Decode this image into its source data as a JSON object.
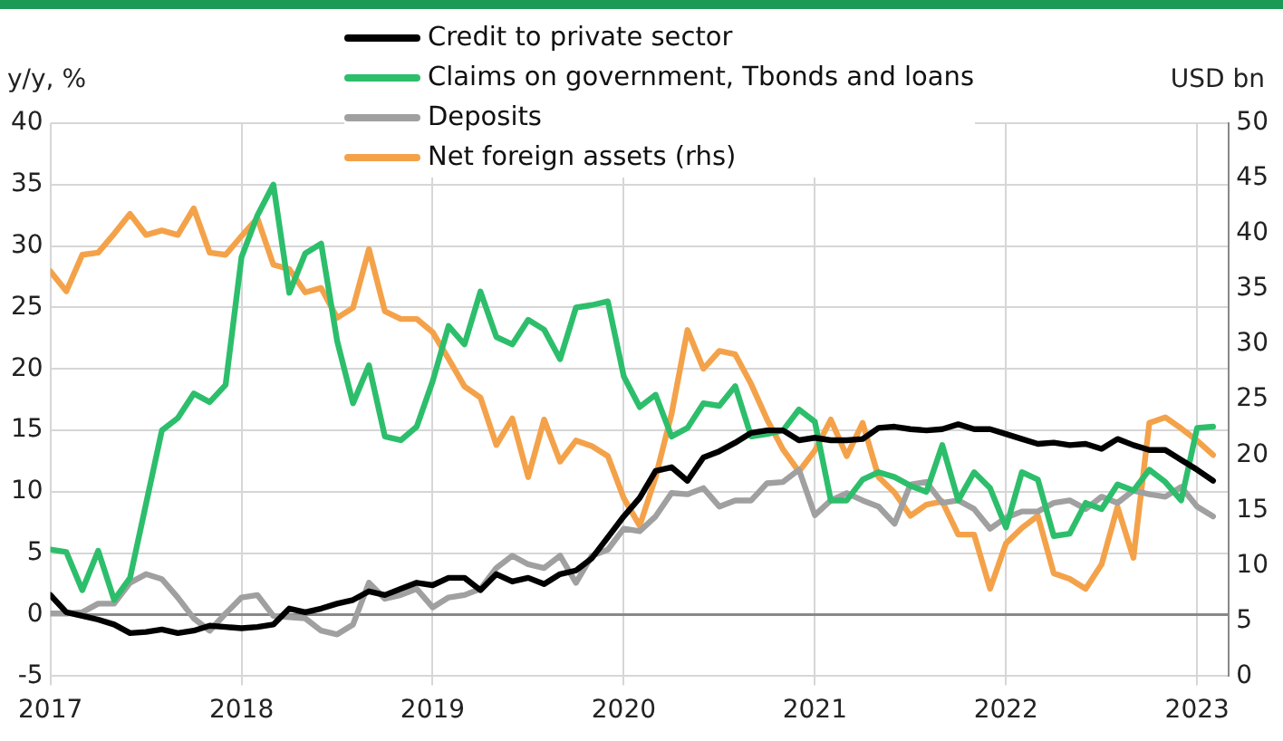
{
  "chart_data": {
    "type": "line",
    "ylabel": "y/y, %",
    "y2label": "USD bn",
    "x": [
      "2017-01",
      "2017-02",
      "2017-03",
      "2017-04",
      "2017-05",
      "2017-06",
      "2017-07",
      "2017-08",
      "2017-09",
      "2017-10",
      "2017-11",
      "2017-12",
      "2018-01",
      "2018-02",
      "2018-03",
      "2018-04",
      "2018-05",
      "2018-06",
      "2018-07",
      "2018-08",
      "2018-09",
      "2018-10",
      "2018-11",
      "2018-12",
      "2019-01",
      "2019-02",
      "2019-03",
      "2019-04",
      "2019-05",
      "2019-06",
      "2019-07",
      "2019-08",
      "2019-09",
      "2019-10",
      "2019-11",
      "2019-12",
      "2020-01",
      "2020-02",
      "2020-03",
      "2020-04",
      "2020-05",
      "2020-06",
      "2020-07",
      "2020-08",
      "2020-09",
      "2020-10",
      "2020-11",
      "2020-12",
      "2021-01",
      "2021-02",
      "2021-03",
      "2021-04",
      "2021-05",
      "2021-06",
      "2021-07",
      "2021-08",
      "2021-09",
      "2021-10",
      "2021-11",
      "2021-12",
      "2022-01",
      "2022-02",
      "2022-03",
      "2022-04",
      "2022-05",
      "2022-06",
      "2022-07",
      "2022-08",
      "2022-09",
      "2022-10",
      "2022-11",
      "2022-12",
      "2023-01",
      "2023-02"
    ],
    "series": [
      {
        "name": "Credit to private sector",
        "color": "#000000",
        "values": [
          1.6,
          0.2,
          -0.1,
          -0.4,
          -0.8,
          -1.5,
          -1.4,
          -1.2,
          -1.5,
          -1.3,
          -0.9,
          -1.0,
          -1.1,
          -1.0,
          -0.8,
          0.5,
          0.2,
          0.5,
          0.9,
          1.2,
          1.9,
          1.6,
          2.1,
          2.6,
          2.4,
          3.0,
          3.0,
          2.0,
          3.3,
          2.7,
          3.0,
          2.5,
          3.3,
          3.6,
          4.6,
          6.3,
          8.0,
          9.5,
          11.7,
          12.0,
          10.9,
          12.8,
          13.3,
          14.0,
          14.8,
          15.0,
          15.0,
          14.2,
          14.4,
          14.2,
          14.2,
          14.3,
          15.2,
          15.3,
          15.1,
          15.0,
          15.1,
          15.5,
          15.1,
          15.1,
          14.7,
          14.3,
          13.9,
          14.0,
          13.8,
          13.9,
          13.5,
          14.3,
          13.8,
          13.4,
          13.4,
          12.6,
          11.8,
          10.9
        ]
      },
      {
        "name": "Claims on government, Tbonds and loans",
        "color": "#2dbe6c",
        "values": [
          5.3,
          5.1,
          2.0,
          5.2,
          1.2,
          3.0,
          9.0,
          15.0,
          16.0,
          18.0,
          17.3,
          18.7,
          29.1,
          32.5,
          35.0,
          26.2,
          29.4,
          30.2,
          22.3,
          17.2,
          20.3,
          14.5,
          14.2,
          15.3,
          19.0,
          23.5,
          22.0,
          26.3,
          22.6,
          22.0,
          24.0,
          23.2,
          20.8,
          25.0,
          25.2,
          25.5,
          19.4,
          16.9,
          17.9,
          14.5,
          15.2,
          17.2,
          17.0,
          18.6,
          14.5,
          14.7,
          15.0,
          16.7,
          15.7,
          9.3,
          9.3,
          11.0,
          11.6,
          11.2,
          10.5,
          10.0,
          13.8,
          9.3,
          11.6,
          10.3,
          7.1,
          11.6,
          11.0,
          6.4,
          6.6,
          9.1,
          8.6,
          10.6,
          10.1,
          11.8,
          10.8,
          9.3,
          15.2,
          15.3
        ]
      },
      {
        "name": "Deposits",
        "color": "#a0a0a0",
        "values": [
          0.1,
          0.1,
          0.2,
          0.9,
          0.9,
          2.6,
          3.3,
          2.9,
          1.4,
          -0.3,
          -1.3,
          0.1,
          1.4,
          1.6,
          -0.1,
          -0.2,
          -0.3,
          -1.3,
          -1.6,
          -0.8,
          2.6,
          1.3,
          1.6,
          2.1,
          0.6,
          1.4,
          1.6,
          2.1,
          3.8,
          4.8,
          4.1,
          3.8,
          4.8,
          2.6,
          4.8,
          5.3,
          7.0,
          6.8,
          8.0,
          9.9,
          9.8,
          10.3,
          8.8,
          9.3,
          9.3,
          10.7,
          10.8,
          11.8,
          8.1,
          9.3,
          9.9,
          9.3,
          8.8,
          7.4,
          10.6,
          10.8,
          9.1,
          9.3,
          8.6,
          7.0,
          7.9,
          8.4,
          8.4,
          9.1,
          9.3,
          8.6,
          9.6,
          9.1,
          10.1,
          9.8,
          9.6,
          10.4,
          8.8,
          8.0
        ]
      },
      {
        "name": "Net foreign assets (rhs)",
        "color": "#f4a24a",
        "axis": "y2",
        "values": [
          36.6,
          34.8,
          38.1,
          38.3,
          40.0,
          41.8,
          39.9,
          40.3,
          39.9,
          42.3,
          38.3,
          38.1,
          39.8,
          41.4,
          37.2,
          36.8,
          34.7,
          35.1,
          32.4,
          33.3,
          38.6,
          33.0,
          32.3,
          32.3,
          31.1,
          28.7,
          26.2,
          25.2,
          20.9,
          23.3,
          18.0,
          23.2,
          19.4,
          21.3,
          20.8,
          19.9,
          16.1,
          13.6,
          18.0,
          23.7,
          31.3,
          27.8,
          29.4,
          29.1,
          26.4,
          23.2,
          20.5,
          18.5,
          20.4,
          23.2,
          19.9,
          22.9,
          18.0,
          16.6,
          14.5,
          15.5,
          15.8,
          12.8,
          12.8,
          7.9,
          12.0,
          13.4,
          14.5,
          9.3,
          8.8,
          7.9,
          10.1,
          15.3,
          10.7,
          22.9,
          23.4,
          22.4,
          21.3,
          20.0
        ]
      }
    ],
    "xlim": [
      "2017-01",
      "2023-03"
    ],
    "xticks": [
      "2017",
      "2018",
      "2019",
      "2020",
      "2021",
      "2022",
      "2023"
    ],
    "ylim": [
      -5,
      40
    ],
    "yticks": [
      -5,
      0,
      5,
      10,
      15,
      20,
      25,
      30,
      35,
      40
    ],
    "y2lim": [
      0,
      50
    ],
    "y2ticks": [
      0,
      5,
      10,
      15,
      20,
      25,
      30,
      35,
      40,
      45,
      50
    ],
    "grid": true,
    "legend": "top",
    "marker": "none",
    "line_style": "solid"
  }
}
